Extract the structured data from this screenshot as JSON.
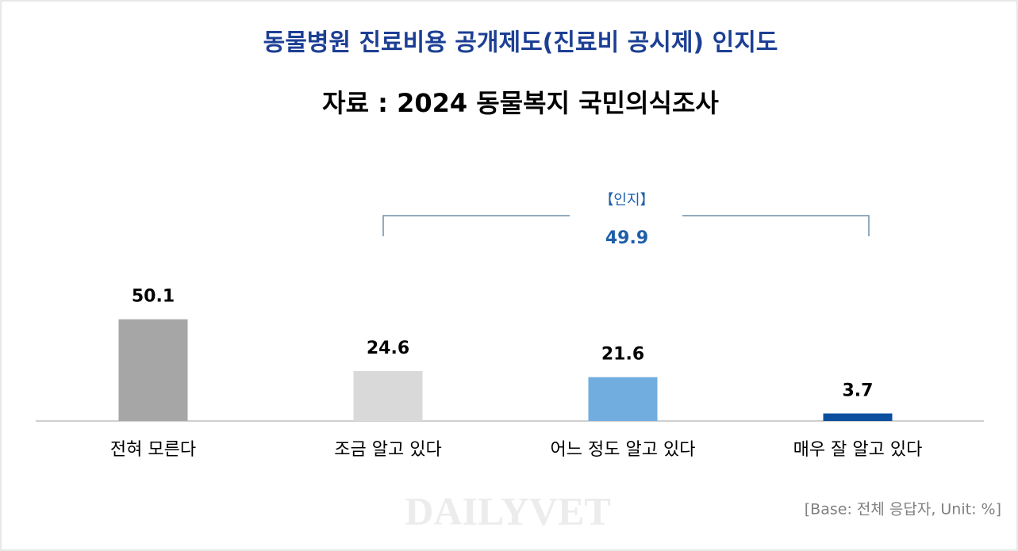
{
  "chart_data": {
    "type": "bar",
    "title": "동물병원 진료비용 공개제도(진료비 공시제) 인지도",
    "subtitle": "자료 : 2024 동물복지 국민의식조사",
    "categories": [
      "전혀 모른다",
      "조금 알고 있다",
      "어느 정도 알고 있다",
      "매우 잘 알고 있다"
    ],
    "values": [
      50.1,
      24.6,
      21.6,
      3.7
    ],
    "colors": [
      "#a6a6a6",
      "#d9d9d9",
      "#72ade0",
      "#0b4f9e"
    ],
    "annotation": {
      "label": "【인지】",
      "value": 49.9
    },
    "note": "[Base: 전체 응답자, Unit: %]",
    "watermark": "DAILYVET"
  }
}
